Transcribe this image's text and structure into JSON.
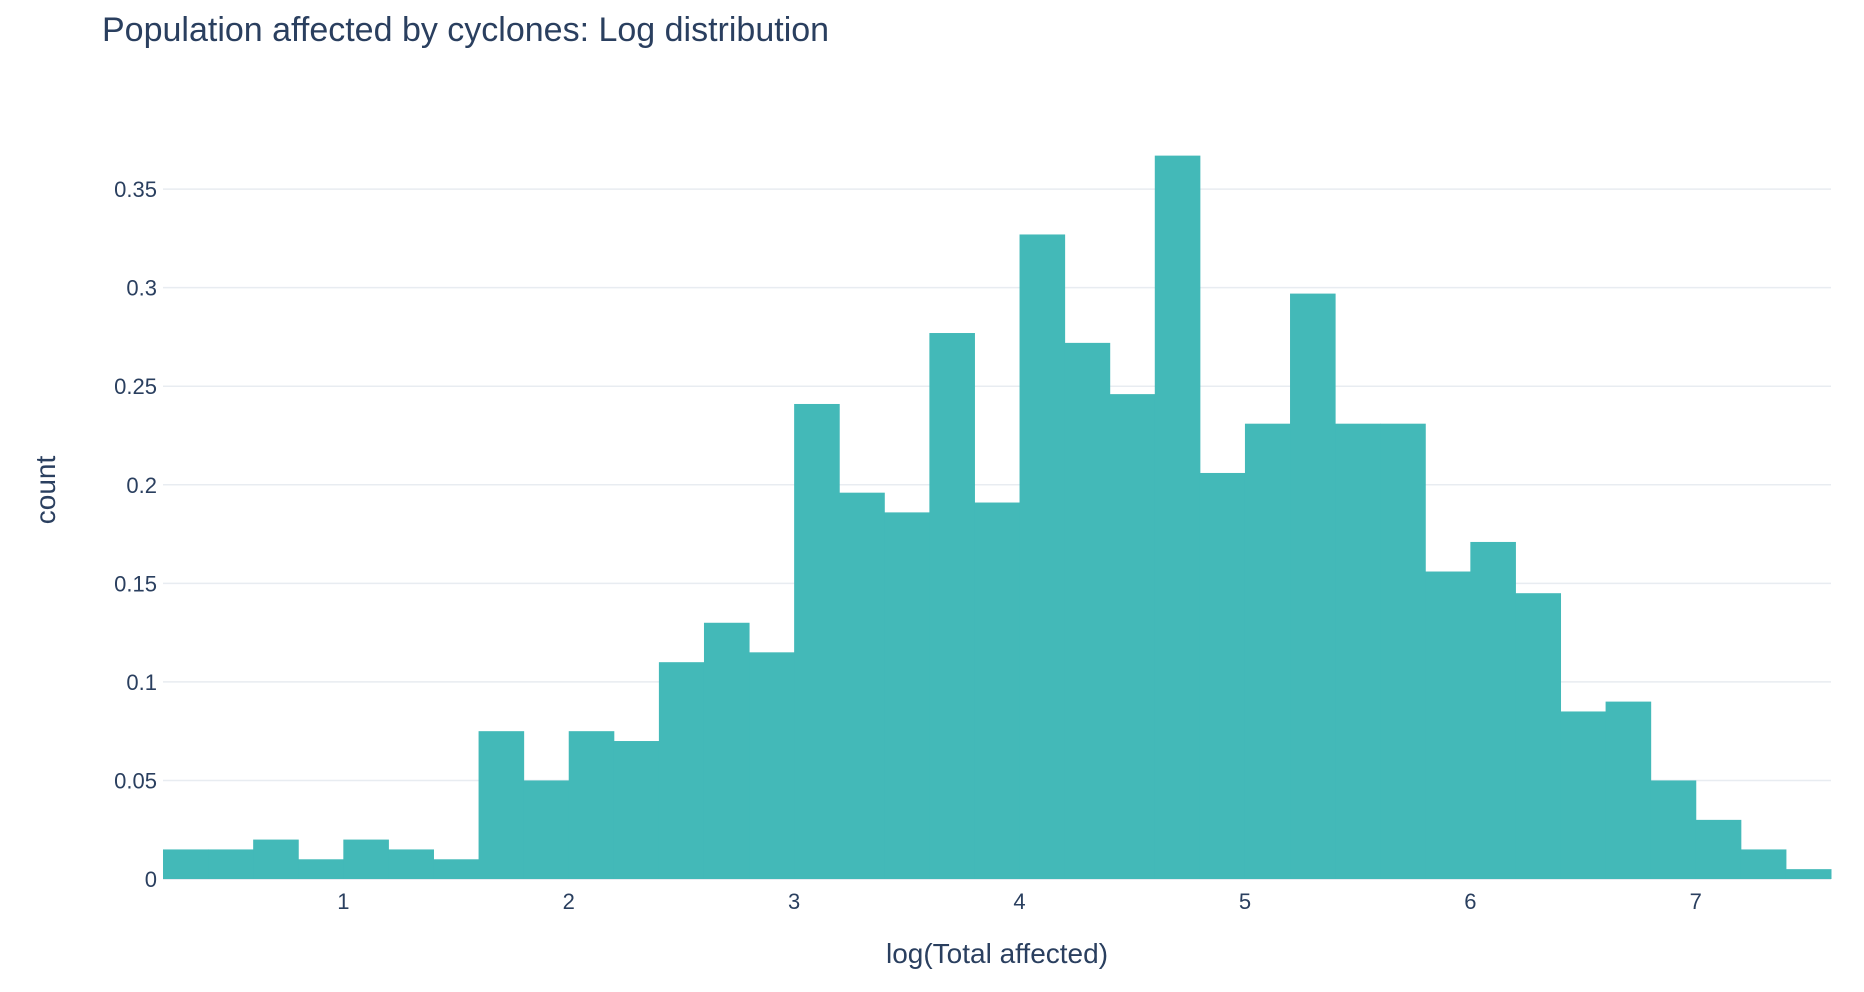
{
  "chart_data": {
    "type": "bar",
    "title": "Population affected by cyclones: Log distribution",
    "xlabel": "log(Total affected)",
    "ylabel": "count",
    "bin_width": 0.2,
    "x_start": 0.2,
    "xlim": [
      0.2,
      7.6
    ],
    "ylim": [
      0,
      0.38
    ],
    "x_ticks": [
      1,
      2,
      3,
      4,
      5,
      6,
      7
    ],
    "x_tick_labels": [
      "1",
      "2",
      "3",
      "4",
      "5",
      "6",
      "7"
    ],
    "y_ticks": [
      0,
      0.05,
      0.1,
      0.15,
      0.2,
      0.25,
      0.3,
      0.35
    ],
    "y_tick_labels": [
      "0",
      "0.05",
      "0.1",
      "0.15",
      "0.2",
      "0.25",
      "0.3",
      "0.35"
    ],
    "values": [
      0.015,
      0.015,
      0.02,
      0.01,
      0.02,
      0.015,
      0.01,
      0.075,
      0.05,
      0.075,
      0.07,
      0.11,
      0.13,
      0.115,
      0.241,
      0.196,
      0.186,
      0.277,
      0.191,
      0.327,
      0.272,
      0.246,
      0.367,
      0.206,
      0.231,
      0.297,
      0.231,
      0.231,
      0.156,
      0.171,
      0.145,
      0.085,
      0.09,
      0.05,
      0.03,
      0.015,
      0.005
    ],
    "grid": true,
    "bar_color": "#43b9b8"
  }
}
